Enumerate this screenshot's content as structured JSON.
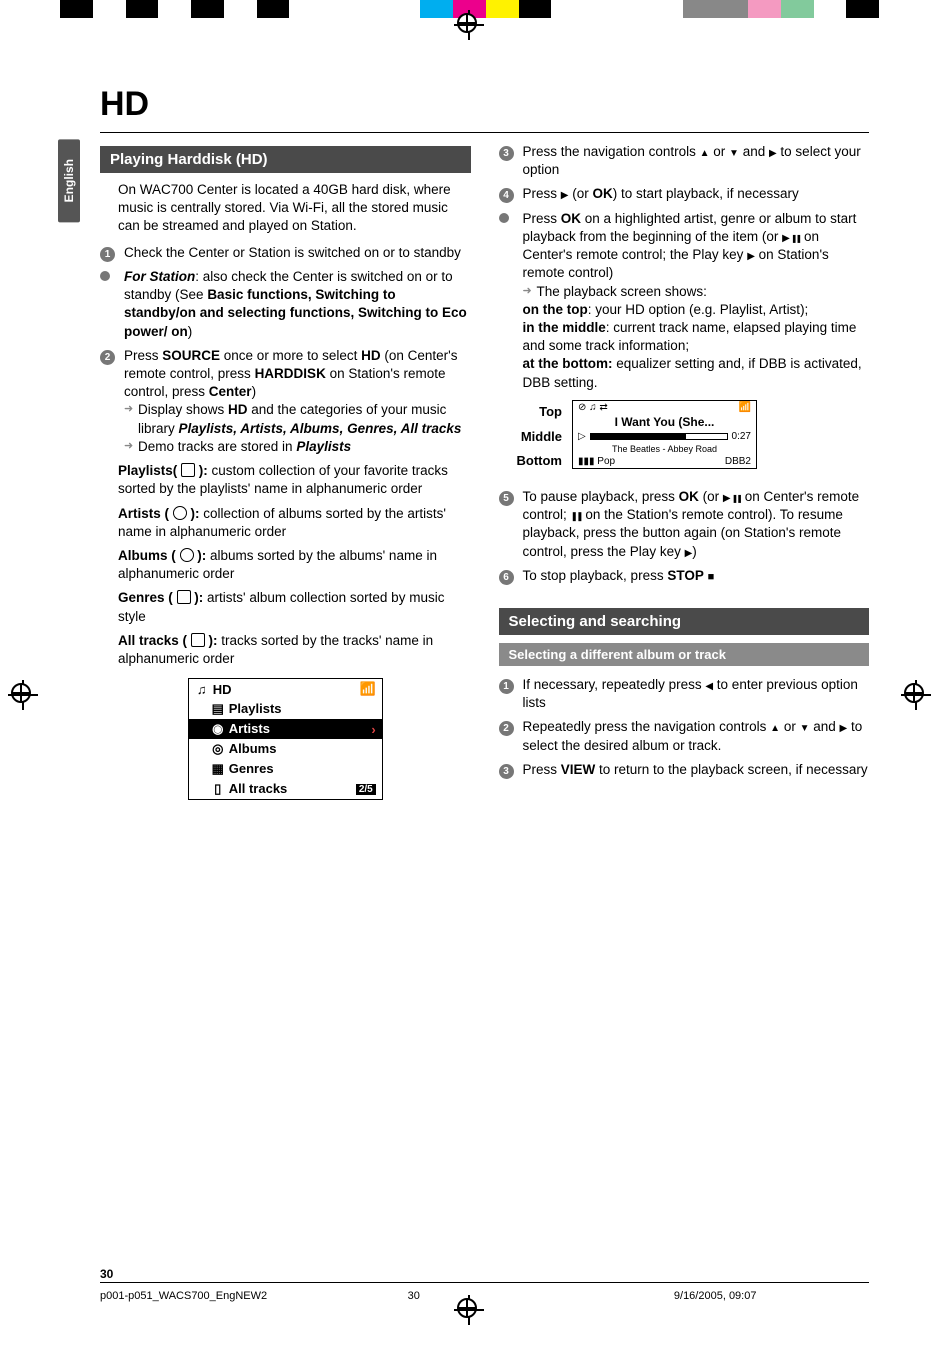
{
  "title": "HD",
  "lang_tab": "English",
  "page_number": "30",
  "footer": {
    "file": "p001-p051_WACS700_EngNEW2",
    "page": "30",
    "date": "9/16/2005, 09:07"
  },
  "color_bar": [
    "#000000",
    "#ffffff",
    "#000000",
    "#ffffff",
    "#000000",
    "#ffffff",
    "#000000",
    "spacer",
    "#00aeef",
    "#ec008c",
    "#fff200",
    "#000000",
    "spacer",
    "#888888",
    "#888888",
    "#f49ac1",
    "#82ca9c",
    "#ffffff",
    "#000000"
  ],
  "left": {
    "heading": "Playing Harddisk (HD)",
    "intro": "On WAC700 Center is located a 40GB hard disk, where music is centrally stored. Via Wi-Fi,  all the stored music can be streamed and played on Station.",
    "step1": "Check the Center or Station  is switched on or to standby",
    "station_bullet_prefix": "For Station",
    "station_bullet": ": also check the Center is switched on or to standby (See ",
    "station_bullet_b": "Basic functions, Switching to standby/on and selecting functions, Switching to Eco power/ on",
    "step2_a": "Press ",
    "step2_b": "SOURCE",
    "step2_c": " once or more to select ",
    "step2_d": "HD",
    "step2_e": " (on Center's remote control, press ",
    "step2_f": "HARDDISK",
    "step2_g": " on Station's remote control, press ",
    "step2_h": "Center",
    "step2_i": ")",
    "arrow1_a": "Display shows ",
    "arrow1_b": "HD",
    "arrow1_c": " and the categories of your music library ",
    "arrow1_d": "Playlists,  Artists,  Albums, Genres,  All tracks",
    "arrow2_a": "Demo tracks are stored in ",
    "arrow2_b": "Playlists",
    "playlists_label": "Playlists( ",
    "playlists_body": " ): ",
    "playlists_body2": "custom collection of your favorite tracks sorted by the playlists' name in alphanumeric order",
    "artists_label": "Artists ( ",
    "artists_body": " ): ",
    "artists_body2": "collection of albums sorted by the artists' name in alphanumeric order",
    "albums_label": "Albums ( ",
    "albums_body": " ): ",
    "albums_body2": "albums sorted by the albums' name in alphanumeric order",
    "genres_label": "Genres ( ",
    "genres_body": " ): ",
    "genres_body2": " artists' album collection sorted by music style",
    "all_label": "All tracks ( ",
    "all_body": " ): ",
    "all_body2": "tracks sorted by the tracks' name in alphanumeric order",
    "menu": {
      "title": "HD",
      "items": [
        "Playlists",
        "Artists",
        "Albums",
        "Genres",
        "All tracks"
      ],
      "selected": 1,
      "counter": "2/5"
    }
  },
  "right": {
    "step3_a": "Press the navigation controls ",
    "step3_b": " or  ",
    "step3_c": " and ",
    "step3_d": " to select your option",
    "step4_a": "Press ",
    "step4_b": " (or ",
    "step4_c": "OK",
    "step4_d": ") to start playback, if necessary",
    "bullet_a": "Press ",
    "bullet_b": "OK",
    "bullet_c": " on a highlighted artist, genre or album to start playback from the beginning of the item (or ",
    "bullet_d": " on Center's remote control; the Play key ",
    "bullet_e": " on Station's remote control)",
    "arrow3": "The playback screen shows:",
    "top_line_a": "on the top",
    "top_line_b": ": your HD option (e.g. Playlist, Artist);",
    "mid_line_a": "in the middle",
    "mid_line_b": ": current track name, elapsed playing time and some track information;",
    "bot_line_a": "at the bottom:",
    "bot_line_b": " equalizer setting and, if DBB is activated, DBB setting.",
    "screen_labels": {
      "top": "Top",
      "middle": "Middle",
      "bottom": "Bottom"
    },
    "screen": {
      "track": "I Want You (She...",
      "time": "0:27",
      "artist_album": "The Beatles - Abbey Road",
      "eq": "Pop",
      "dbb": "DBB2"
    },
    "step5_a": "To pause playback, press ",
    "step5_b": "OK",
    "step5_c": " (or ",
    "step5_d": " on Center's remote control; ",
    "step5_e": " on the Station's remote control).  To resume playback, press the button again (on Station's remote control, press the Play key ",
    "step6_a": "To stop playback, press ",
    "step6_b": "STOP",
    "sel_heading": "Selecting and searching",
    "sel_sub": "Selecting a different album or track",
    "sel1_a": "If necessary, repeatedly press ",
    "sel1_b": " to enter previous option lists",
    "sel2_a": "Repeatedly press the navigation controls ",
    "sel2_b": " or ",
    "sel2_c": " and ",
    "sel2_d": " to select the desired album or track.",
    "sel3_a": "Press ",
    "sel3_b": "VIEW",
    "sel3_c": " to return to the playback screen, if necessary"
  }
}
